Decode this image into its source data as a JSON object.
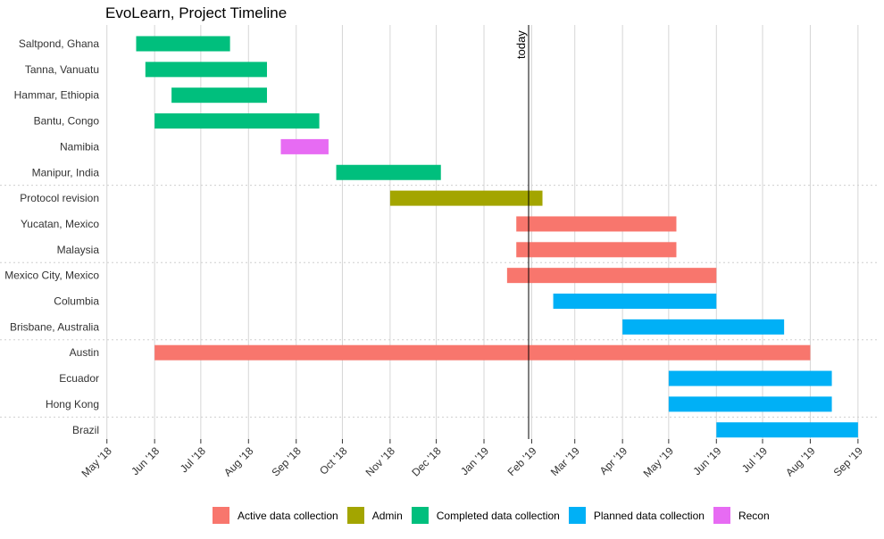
{
  "chart_data": {
    "type": "gantt",
    "title": "EvoLearn, Project Timeline",
    "today": "2019-01-30",
    "today_label": "today",
    "x_range": [
      "2018-04-30",
      "2019-09-15"
    ],
    "x_ticks": [
      {
        "date": "2018-05-01",
        "label": "May '18"
      },
      {
        "date": "2018-06-01",
        "label": "Jun '18"
      },
      {
        "date": "2018-07-01",
        "label": "Jul '18"
      },
      {
        "date": "2018-08-01",
        "label": "Aug '18"
      },
      {
        "date": "2018-09-01",
        "label": "Sep '18"
      },
      {
        "date": "2018-10-01",
        "label": "Oct '18"
      },
      {
        "date": "2018-11-01",
        "label": "Nov '18"
      },
      {
        "date": "2018-12-01",
        "label": "Dec '18"
      },
      {
        "date": "2019-01-01",
        "label": "Jan '19"
      },
      {
        "date": "2019-02-01",
        "label": "Feb '19"
      },
      {
        "date": "2019-03-01",
        "label": "Mar '19"
      },
      {
        "date": "2019-04-01",
        "label": "Apr '19"
      },
      {
        "date": "2019-05-01",
        "label": "May '19"
      },
      {
        "date": "2019-06-01",
        "label": "Jun '19"
      },
      {
        "date": "2019-07-01",
        "label": "Jul '19"
      },
      {
        "date": "2019-08-01",
        "label": "Aug '19"
      },
      {
        "date": "2019-09-01",
        "label": "Sep '19"
      }
    ],
    "categories": [
      {
        "name": "Active data collection",
        "color": "#F8766D"
      },
      {
        "name": "Admin",
        "color": "#A3A500"
      },
      {
        "name": "Completed data collection",
        "color": "#00BF7D"
      },
      {
        "name": "Planned data collection",
        "color": "#00B0F6"
      },
      {
        "name": "Recon",
        "color": "#E76BF3"
      }
    ],
    "tasks": [
      {
        "label": "Saltpond, Ghana",
        "start": "2018-05-20",
        "end": "2018-07-20",
        "category": "Completed data collection"
      },
      {
        "label": "Tanna, Vanuatu",
        "start": "2018-05-26",
        "end": "2018-08-13",
        "category": "Completed data collection"
      },
      {
        "label": "Hammar, Ethiopia",
        "start": "2018-06-12",
        "end": "2018-08-13",
        "category": "Completed data collection"
      },
      {
        "label": "Bantu, Congo",
        "start": "2018-06-01",
        "end": "2018-09-16",
        "category": "Completed data collection"
      },
      {
        "label": "Namibia",
        "start": "2018-08-22",
        "end": "2018-09-22",
        "category": "Recon"
      },
      {
        "label": "Manipur, India",
        "start": "2018-09-27",
        "end": "2018-12-04",
        "category": "Completed data collection"
      },
      {
        "label": "Protocol revision",
        "start": "2018-11-01",
        "end": "2019-02-08",
        "category": "Admin"
      },
      {
        "label": "Yucatan, Mexico",
        "start": "2019-01-22",
        "end": "2019-05-06",
        "category": "Active data collection"
      },
      {
        "label": "Malaysia",
        "start": "2019-01-22",
        "end": "2019-05-06",
        "category": "Active data collection"
      },
      {
        "label": "Mexico City, Mexico",
        "start": "2019-01-16",
        "end": "2019-06-01",
        "category": "Active data collection"
      },
      {
        "label": "Columbia",
        "start": "2019-02-15",
        "end": "2019-06-01",
        "category": "Planned data collection"
      },
      {
        "label": "Brisbane, Australia",
        "start": "2019-04-01",
        "end": "2019-07-15",
        "category": "Planned data collection"
      },
      {
        "label": "Austin",
        "start": "2018-06-01",
        "end": "2019-08-01",
        "category": "Active data collection"
      },
      {
        "label": "Ecuador",
        "start": "2019-05-01",
        "end": "2019-08-15",
        "category": "Planned data collection"
      },
      {
        "label": "Hong Kong",
        "start": "2019-05-01",
        "end": "2019-08-15",
        "category": "Planned data collection"
      },
      {
        "label": "Brazil",
        "start": "2019-06-01",
        "end": "2019-09-01",
        "category": "Planned data collection"
      }
    ],
    "group_separators_after": [
      "Manipur, India",
      "Malaysia",
      "Brisbane, Australia",
      "Hong Kong"
    ],
    "grid": true,
    "legend_position": "bottom"
  }
}
